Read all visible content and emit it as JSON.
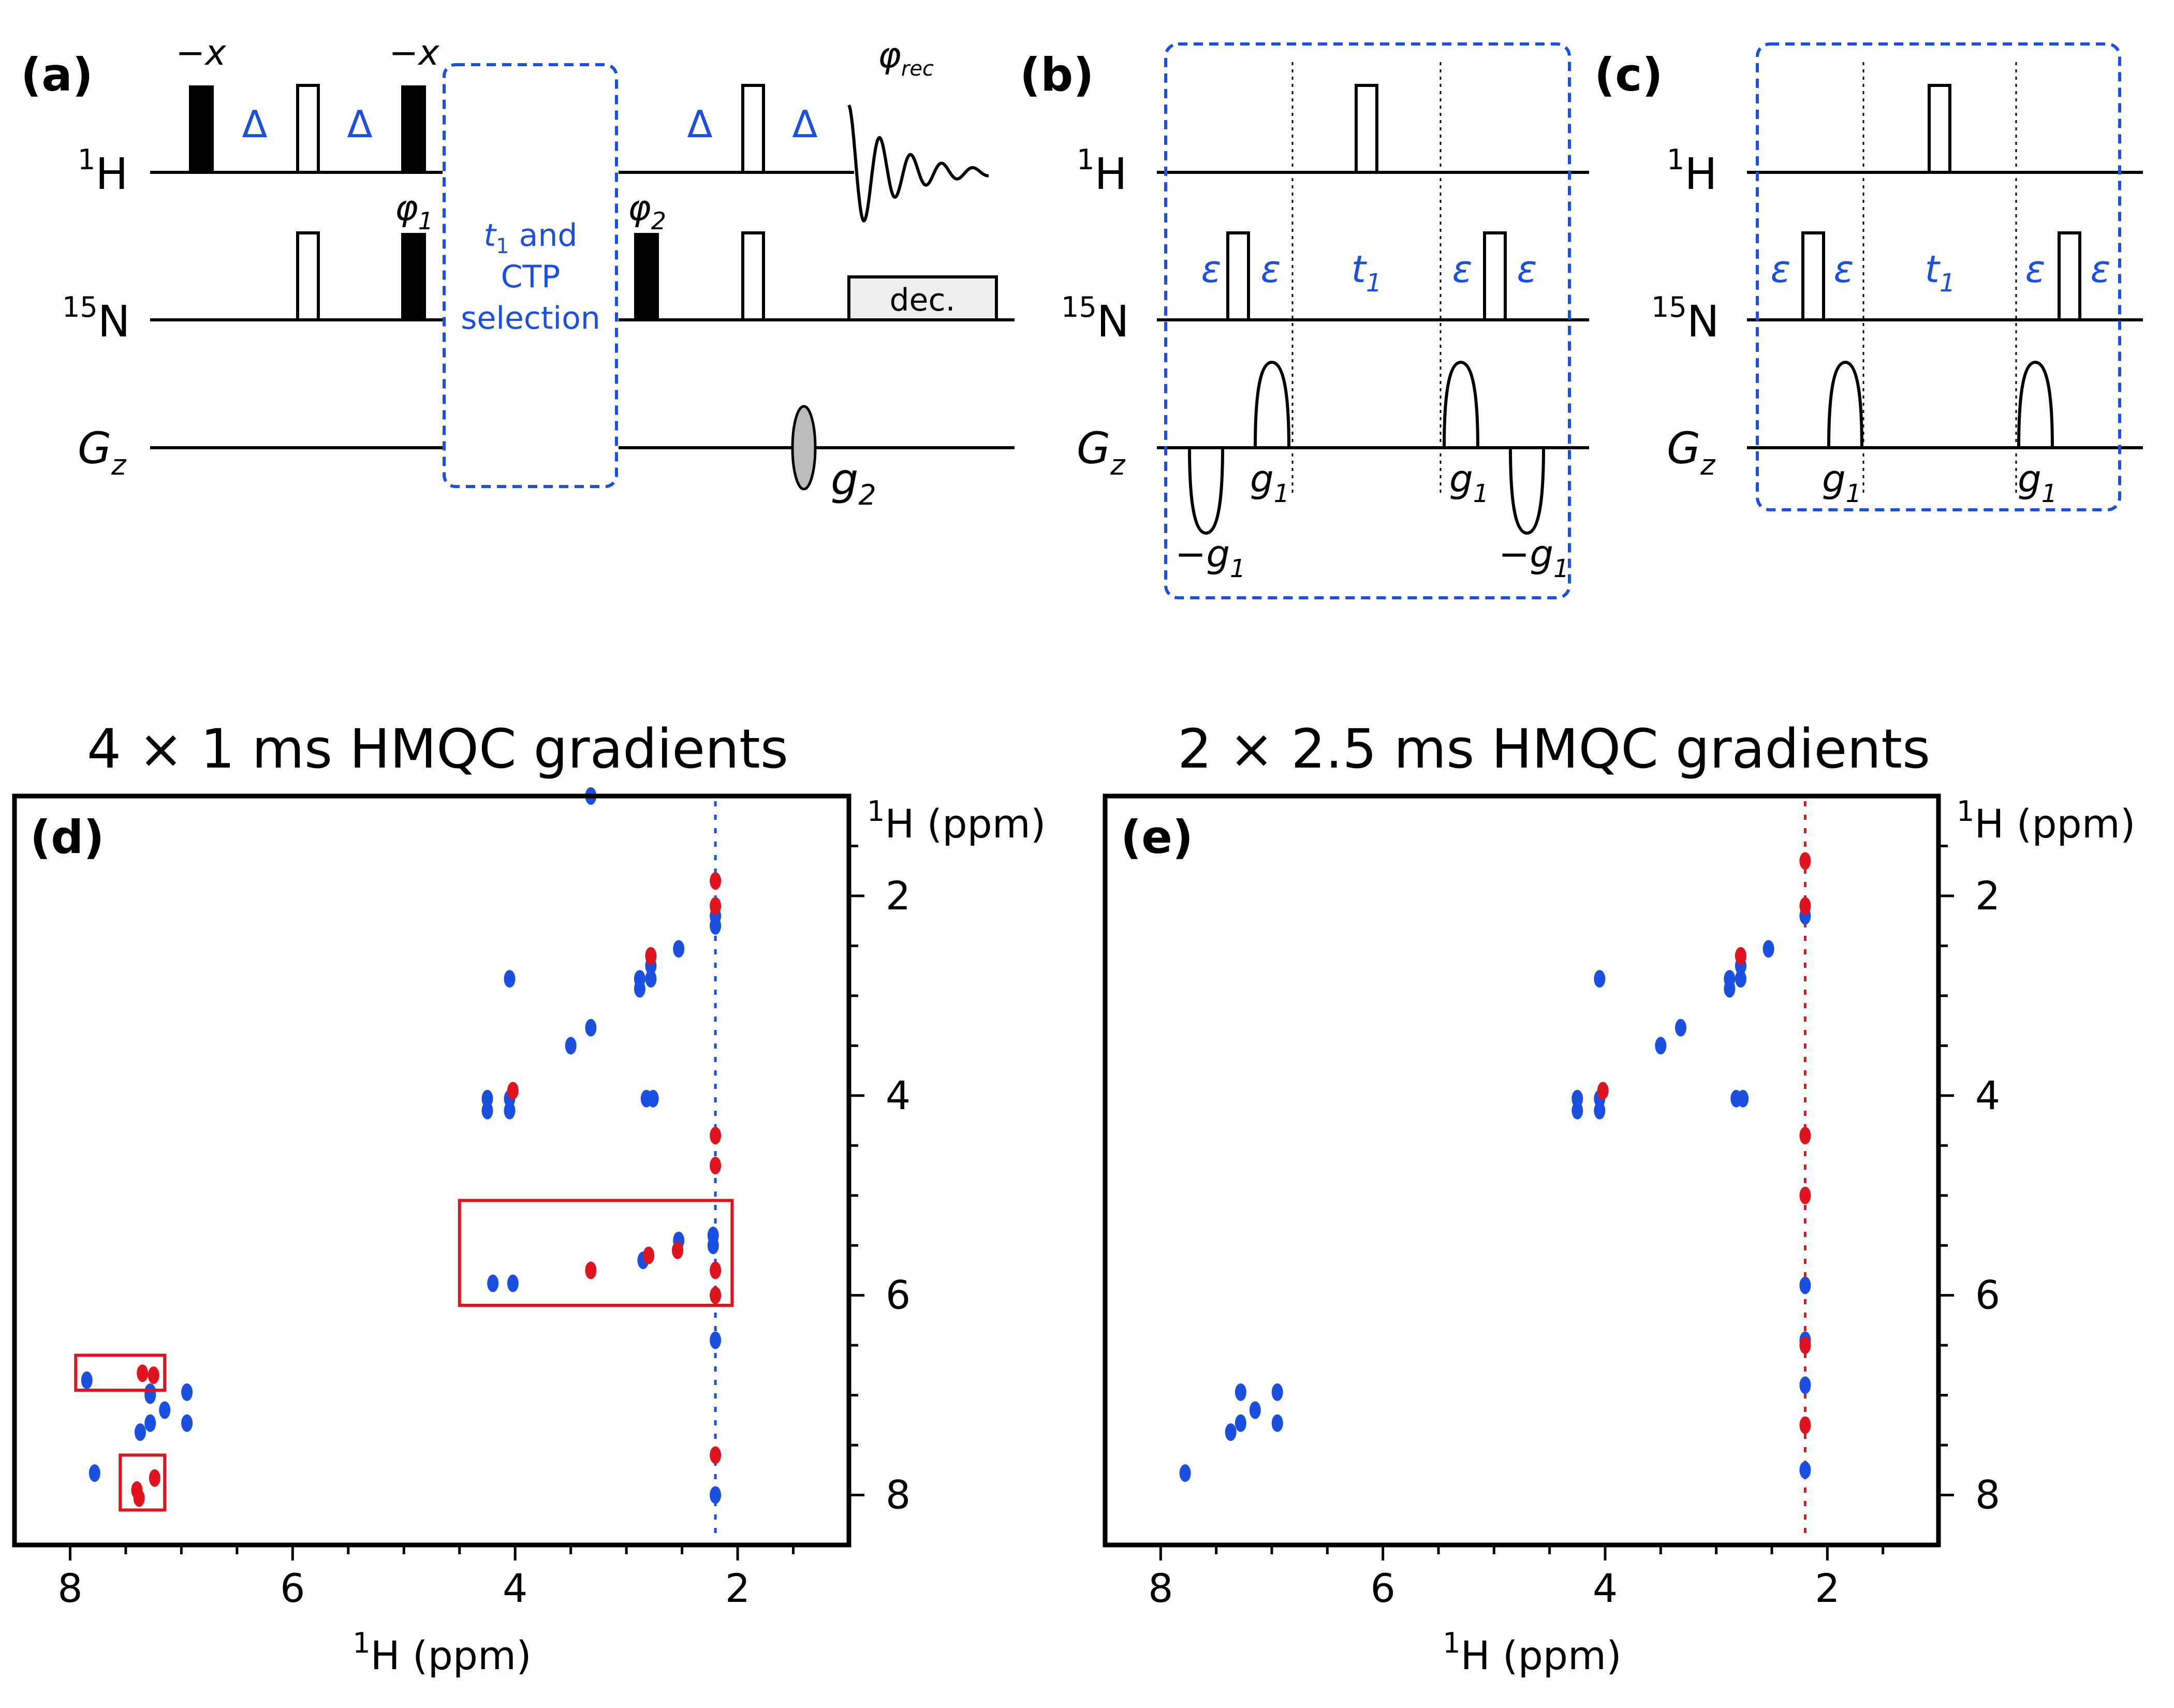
{
  "panel_labels": {
    "a": "(a)",
    "b": "(b)",
    "c": "(c)",
    "d": "(d)",
    "e": "(e)"
  },
  "channels": {
    "h_sup": "1",
    "h": "H",
    "n_sup": "15",
    "n": "N",
    "g": "G",
    "g_sub": "z"
  },
  "pulse_sequence": {
    "phase_minus_x": "−x",
    "phase_phi": "φ",
    "phi1_sub": "1",
    "phi2_sub": "2",
    "phi_rec_sub": "rec",
    "delay_delta": "Δ",
    "delay_eps": "ε",
    "t1": "t",
    "t1_sub": "1",
    "ctp_line1_t": "t",
    "ctp_line1_sub": "1",
    "ctp_line1_rest": " and",
    "ctp_line2": "CTP",
    "ctp_line3": "selection",
    "dec": "dec.",
    "grad_g": "g",
    "grad_g1_sub": "1",
    "grad_g2_sub": "2",
    "grad_minus_g": "−g"
  },
  "colors": {
    "blue": "#1a4fe0",
    "red": "#e0141e",
    "black": "#000000",
    "dec_fill": "#eeeeee"
  },
  "chart_data": [
    {
      "type": "scatter",
      "panel": "(d)",
      "title": "4 × 1 ms HMQC gradients",
      "xlabel_sup": "1",
      "xlabel": "H (ppm)",
      "ylabel_sup": "1",
      "ylabel": "H (ppm)",
      "xlim": [
        8.5,
        1.0
      ],
      "ylim": [
        1.0,
        8.5
      ],
      "xticks": [
        "8",
        "6",
        "4",
        "2"
      ],
      "yticks": [
        "2",
        "4",
        "6",
        "8"
      ],
      "series": [
        {
          "color": "blue",
          "points": [
            [
              7.78,
              7.78
            ],
            [
              7.37,
              7.37
            ],
            [
              7.28,
              7.28
            ],
            [
              7.15,
              7.15
            ],
            [
              7.28,
              6.97
            ],
            [
              6.95,
              6.97
            ],
            [
              6.95,
              7.28
            ],
            [
              7.28,
              7.0
            ],
            [
              4.25,
              4.03
            ],
            [
              4.25,
              4.15
            ],
            [
              4.05,
              4.03
            ],
            [
              4.05,
              4.15
            ],
            [
              4.05,
              2.83
            ],
            [
              3.32,
              3.32
            ],
            [
              3.5,
              3.5
            ],
            [
              2.88,
              2.83
            ],
            [
              2.78,
              2.83
            ],
            [
              2.88,
              2.93
            ],
            [
              2.53,
              2.53
            ],
            [
              2.78,
              2.7
            ],
            [
              2.2,
              2.2
            ],
            [
              2.2,
              2.3
            ],
            [
              2.82,
              4.03
            ],
            [
              2.76,
              4.03
            ],
            [
              3.32,
              1.0
            ],
            [
              4.2,
              5.88
            ],
            [
              4.02,
              5.88
            ],
            [
              2.85,
              5.65
            ],
            [
              2.53,
              5.45
            ],
            [
              2.22,
              5.4
            ],
            [
              2.22,
              5.5
            ],
            [
              7.85,
              6.85
            ],
            [
              2.2,
              6.45
            ],
            [
              2.2,
              8.0
            ]
          ]
        },
        {
          "color": "red",
          "points": [
            [
              7.35,
              6.78
            ],
            [
              7.25,
              6.8
            ],
            [
              7.4,
              7.95
            ],
            [
              7.38,
              8.03
            ],
            [
              7.24,
              7.83
            ],
            [
              3.32,
              5.75
            ],
            [
              2.8,
              5.6
            ],
            [
              2.54,
              5.55
            ],
            [
              2.2,
              5.75
            ],
            [
              2.2,
              6.0
            ],
            [
              2.2,
              4.4
            ],
            [
              2.2,
              4.7
            ],
            [
              2.2,
              7.6
            ],
            [
              4.02,
              3.95
            ],
            [
              2.78,
              2.6
            ],
            [
              2.2,
              1.85
            ],
            [
              2.2,
              2.1
            ]
          ]
        }
      ],
      "vertical_streak_x": 2.2,
      "highlight_boxes": [
        {
          "x": [
            4.5,
            2.05
          ],
          "y": [
            5.05,
            6.1
          ]
        },
        {
          "x": [
            7.95,
            7.15
          ],
          "y": [
            6.6,
            6.95
          ]
        },
        {
          "x": [
            7.55,
            7.15
          ],
          "y": [
            7.6,
            8.15
          ]
        }
      ]
    },
    {
      "type": "scatter",
      "panel": "(e)",
      "title": "2 × 2.5 ms HMQC gradients",
      "xlabel_sup": "1",
      "xlabel": "H (ppm)",
      "ylabel_sup": "1",
      "ylabel": "H (ppm)",
      "xlim": [
        8.5,
        1.0
      ],
      "ylim": [
        1.0,
        8.5
      ],
      "xticks": [
        "8",
        "6",
        "4",
        "2"
      ],
      "yticks": [
        "2",
        "4",
        "6",
        "8"
      ],
      "series": [
        {
          "color": "blue",
          "points": [
            [
              7.78,
              7.78
            ],
            [
              7.37,
              7.37
            ],
            [
              7.28,
              7.28
            ],
            [
              7.15,
              7.15
            ],
            [
              7.28,
              6.97
            ],
            [
              6.95,
              6.97
            ],
            [
              6.95,
              7.28
            ],
            [
              4.25,
              4.03
            ],
            [
              4.25,
              4.15
            ],
            [
              4.05,
              4.03
            ],
            [
              4.05,
              4.15
            ],
            [
              4.05,
              2.83
            ],
            [
              3.32,
              3.32
            ],
            [
              3.5,
              3.5
            ],
            [
              2.88,
              2.83
            ],
            [
              2.78,
              2.83
            ],
            [
              2.88,
              2.93
            ],
            [
              2.53,
              2.53
            ],
            [
              2.78,
              2.7
            ],
            [
              2.2,
              2.2
            ],
            [
              2.82,
              4.03
            ],
            [
              2.76,
              4.03
            ],
            [
              2.2,
              5.9
            ],
            [
              2.2,
              6.45
            ],
            [
              2.2,
              6.9
            ],
            [
              2.2,
              7.75
            ]
          ]
        },
        {
          "color": "red",
          "points": [
            [
              4.02,
              3.95
            ],
            [
              2.78,
              2.6
            ],
            [
              2.2,
              1.65
            ],
            [
              2.2,
              2.1
            ],
            [
              2.2,
              4.4
            ],
            [
              2.2,
              5.0
            ],
            [
              2.2,
              6.5
            ],
            [
              2.2,
              7.3
            ]
          ]
        }
      ],
      "vertical_streak_x": 2.2,
      "highlight_boxes": []
    }
  ]
}
